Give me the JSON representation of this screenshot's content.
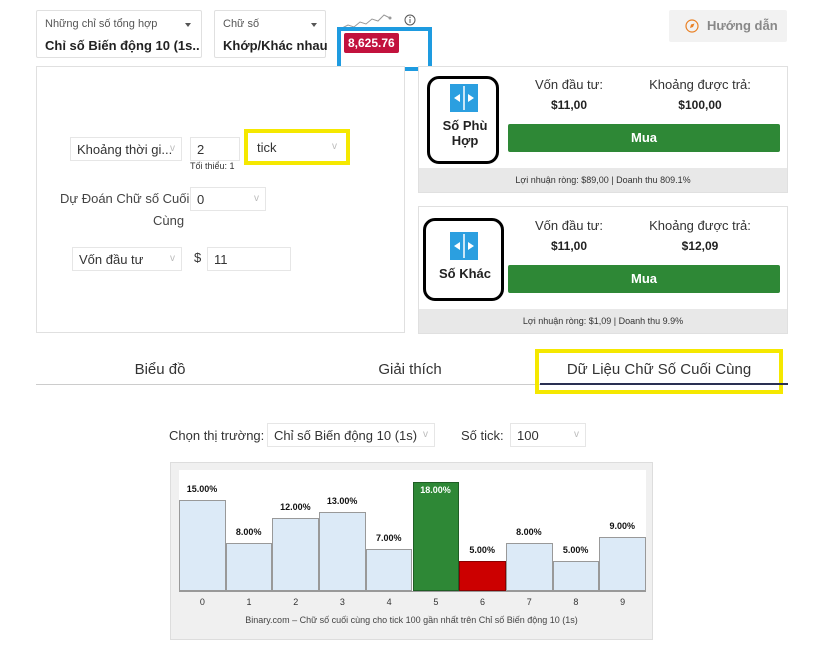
{
  "header": {
    "market_select": {
      "label": "Những chỉ số tổng hợp",
      "value": "Chỉ số Biến động 10 (1s..."
    },
    "type_select": {
      "label": "Chữ số",
      "value": "Khớp/Khác nhau"
    },
    "spot_price": "8,625.76",
    "guide_button": "Hướng dẫn",
    "info_icon": "info-icon"
  },
  "form": {
    "duration_label": "Khoảng thời gi...",
    "duration_value": "2",
    "duration_unit": "tick",
    "duration_min": "Tối thiểu: 1",
    "prediction_label_line1": "Dự Đoán Chữ số Cuối",
    "prediction_label_line2": "Cùng",
    "prediction_value": "0",
    "stake_select": "Vốn đầu tư",
    "currency": "$",
    "stake_value": "11"
  },
  "contracts": [
    {
      "name_line1": "Số Phù",
      "name_line2": "Hợp",
      "stake_label": "Vốn đầu tư:",
      "stake_value": "$11,00",
      "payout_label": "Khoảng được trả:",
      "payout_value": "$100,00",
      "buy_label": "Mua",
      "footer": "Lợi nhuận ròng: $89,00 | Doanh thu 809.1%"
    },
    {
      "name_line1": "Số Khác",
      "name_line2": "",
      "stake_label": "Vốn đầu tư:",
      "stake_value": "$11,00",
      "payout_label": "Khoảng được trả:",
      "payout_value": "$12,09",
      "buy_label": "Mua",
      "footer": "Lợi nhuận ròng: $1,09 | Doanh thu 9.9%"
    }
  ],
  "tabs": [
    "Biểu đồ",
    "Giải thích",
    "Dữ Liệu Chữ Số Cuối Cùng"
  ],
  "digit_stats": {
    "market_label": "Chọn thị trường:",
    "market_value": "Chỉ số Biến động 10 (1s)",
    "ticks_label": "Số tick:",
    "ticks_value": "100"
  },
  "chart_data": {
    "type": "bar",
    "categories": [
      "0",
      "1",
      "2",
      "3",
      "4",
      "5",
      "6",
      "7",
      "8",
      "9"
    ],
    "values": [
      15,
      8,
      12,
      13,
      7,
      18,
      5,
      8,
      5,
      9
    ],
    "labels": [
      "15.00%",
      "8.00%",
      "12.00%",
      "13.00%",
      "7.00%",
      "18.00%",
      "5.00%",
      "8.00%",
      "5.00%",
      "9.00%"
    ],
    "highlight_max_color": "#2e8836",
    "highlight_min_color": "#cc0000",
    "bar_color": "#dceaf7",
    "caption": "Binary.com – Chữ số cuối cùng cho tick 100 gần nhất trên Chỉ số Biến động 10 (1s)",
    "ylim": [
      0,
      18
    ]
  },
  "colors": {
    "buy_green": "#2e8836",
    "spot_red": "#c2123d",
    "annotation_yellow": "#f5e800",
    "annotation_blue": "#1e9be0"
  }
}
